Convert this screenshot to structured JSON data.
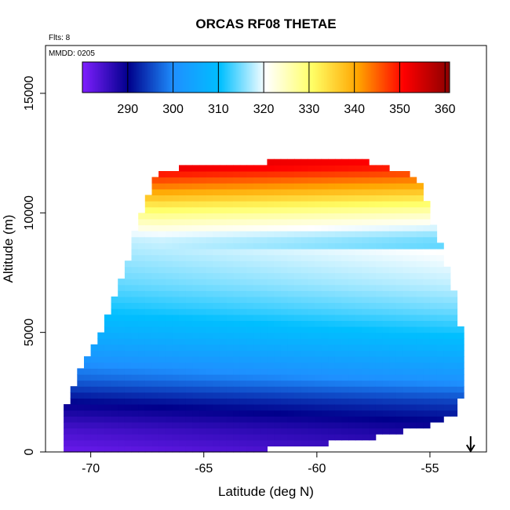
{
  "chart_data": {
    "type": "heatmap",
    "title": "ORCAS RF08 THETAE",
    "xlabel": "Latitude (deg N)",
    "ylabel": "Altitude (m)",
    "annotations": {
      "flights": "Flts: 8",
      "date": "MMDD: 0205"
    },
    "xlim": [
      -72,
      -52.5
    ],
    "ylim": [
      0,
      17000
    ],
    "x_ticks": [
      -70,
      -65,
      -60,
      -55
    ],
    "x_tick_labels": [
      "-70",
      "-65",
      "-60",
      "-55"
    ],
    "y_ticks": [
      0,
      5000,
      10000,
      15000
    ],
    "y_tick_labels": [
      "0",
      "5000",
      "10000",
      "15000"
    ],
    "colorbar": {
      "min": 280,
      "max": 361,
      "ticks": [
        290,
        300,
        310,
        320,
        330,
        340,
        350,
        360
      ],
      "tick_labels": [
        "290",
        "300",
        "310",
        "320",
        "330",
        "340",
        "350",
        "360"
      ],
      "colors": [
        "#7f1fff",
        "#00008b",
        "#1e90ff",
        "#00bfff",
        "#ffffff",
        "#ffff66",
        "#ffa500",
        "#ff0000",
        "#8b0000"
      ]
    },
    "series_name": "THETAE",
    "field_profile": [
      {
        "altitude": 0,
        "thetae": 284
      },
      {
        "altitude": 1000,
        "thetae": 287
      },
      {
        "altitude": 2000,
        "thetae": 292
      },
      {
        "altitude": 3000,
        "thetae": 299
      },
      {
        "altitude": 4000,
        "thetae": 304
      },
      {
        "altitude": 5000,
        "thetae": 309
      },
      {
        "altitude": 6000,
        "thetae": 313
      },
      {
        "altitude": 7000,
        "thetae": 316
      },
      {
        "altitude": 8000,
        "thetae": 318
      },
      {
        "altitude": 9000,
        "thetae": 320
      },
      {
        "altitude": 10000,
        "thetae": 330
      },
      {
        "altitude": 11000,
        "thetae": 343
      },
      {
        "altitude": 12000,
        "thetae": 355
      }
    ],
    "data_extent": [
      {
        "lat": -71.2,
        "alt_min": 0,
        "alt_max": 1500
      },
      {
        "lat": -70.5,
        "alt_min": 0,
        "alt_max": 3500
      },
      {
        "lat": -69.5,
        "alt_min": 0,
        "alt_max": 5200
      },
      {
        "lat": -68.5,
        "alt_min": 0,
        "alt_max": 7500
      },
      {
        "lat": -68.0,
        "alt_min": 0,
        "alt_max": 9500
      },
      {
        "lat": -67.0,
        "alt_min": 0,
        "alt_max": 11800
      },
      {
        "lat": -63.5,
        "alt_min": 0,
        "alt_max": 12100
      },
      {
        "lat": -58.0,
        "alt_min": 500,
        "alt_max": 12200
      },
      {
        "lat": -55.5,
        "alt_min": 1000,
        "alt_max": 11500
      },
      {
        "lat": -54.0,
        "alt_min": 1500,
        "alt_max": 7000
      },
      {
        "lat": -53.5,
        "alt_min": 2500,
        "alt_max": 4500
      }
    ],
    "marker": {
      "type": "arrow-down",
      "lat": -53.2
    }
  }
}
